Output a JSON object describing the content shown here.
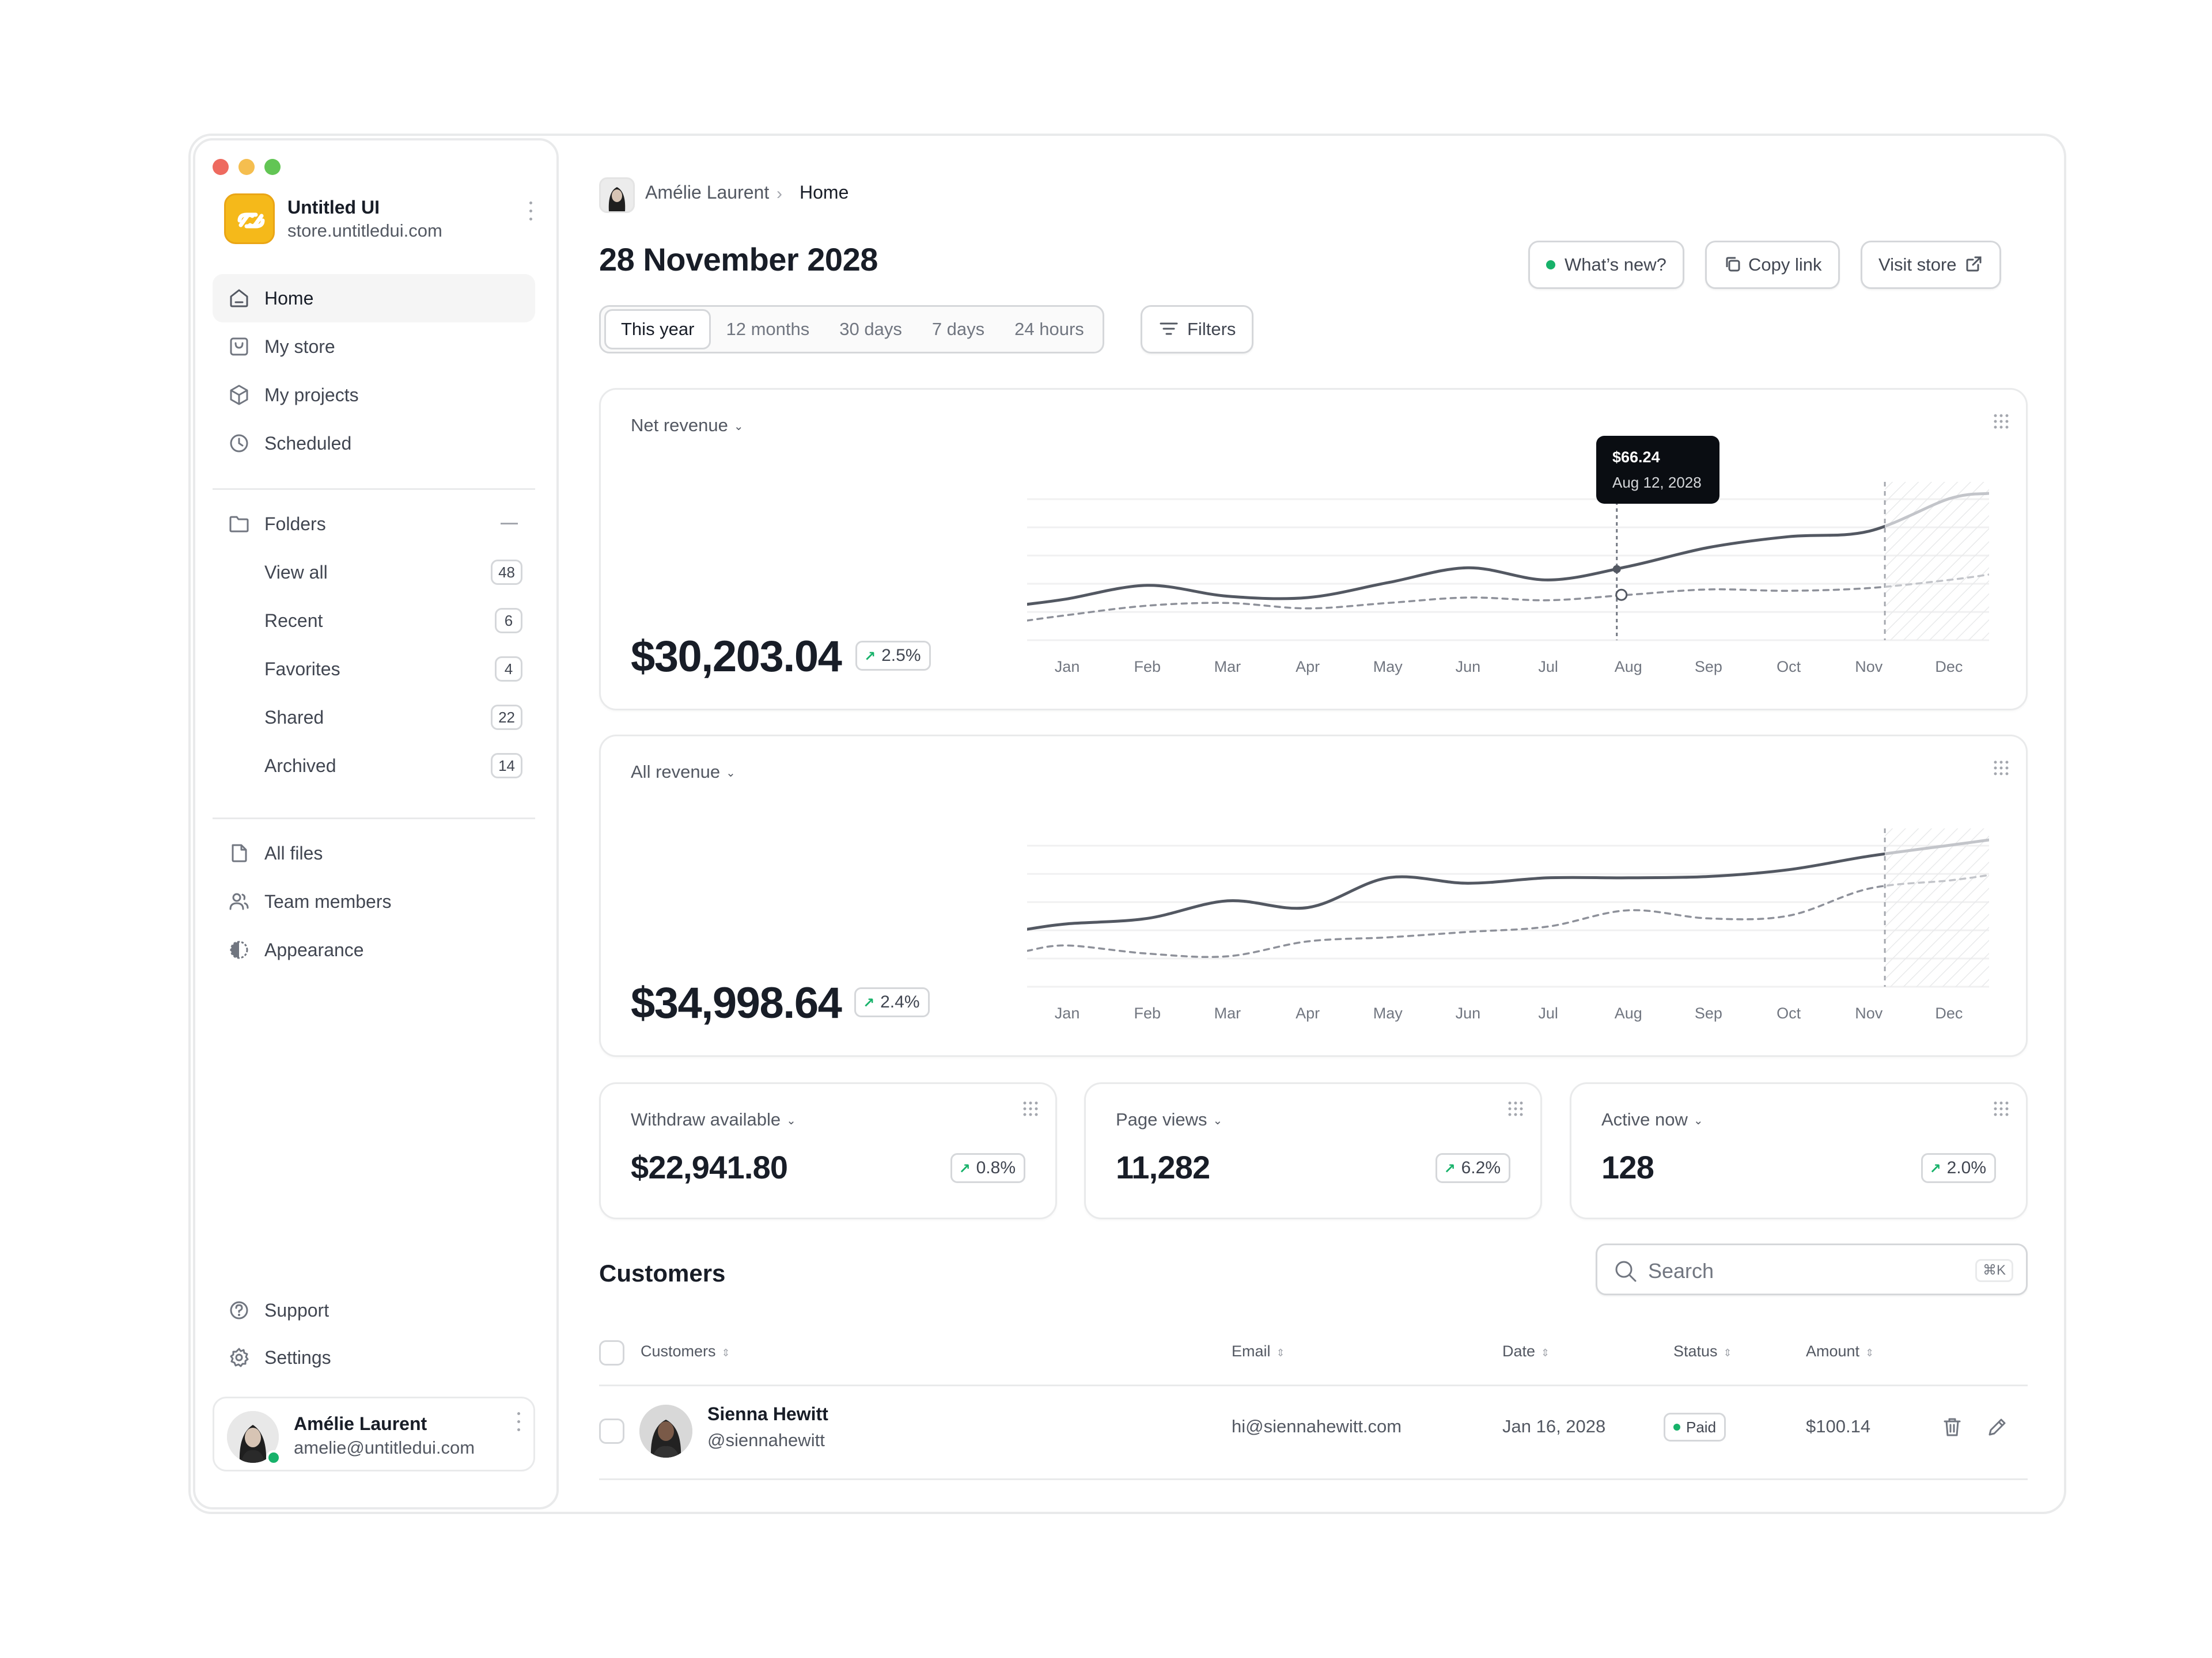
{
  "sidebar": {
    "brand": {
      "name": "Untitled UI",
      "url": "store.untitledui.com"
    },
    "nav": [
      {
        "label": "Home",
        "icon": "home-icon",
        "active": true
      },
      {
        "label": "My store",
        "icon": "store-icon"
      },
      {
        "label": "My projects",
        "icon": "cube-icon"
      },
      {
        "label": "Scheduled",
        "icon": "clock-icon"
      }
    ],
    "folders": {
      "label": "Folders",
      "items": [
        {
          "label": "View all",
          "count": "48"
        },
        {
          "label": "Recent",
          "count": "6"
        },
        {
          "label": "Favorites",
          "count": "4"
        },
        {
          "label": "Shared",
          "count": "22"
        },
        {
          "label": "Archived",
          "count": "14"
        }
      ]
    },
    "secondary": [
      {
        "label": "All files",
        "icon": "file-icon"
      },
      {
        "label": "Team members",
        "icon": "users-icon"
      },
      {
        "label": "Appearance",
        "icon": "contrast-icon"
      }
    ],
    "footer_nav": [
      {
        "label": "Support",
        "icon": "help-icon"
      },
      {
        "label": "Settings",
        "icon": "gear-icon"
      }
    ],
    "user": {
      "name": "Amélie Laurent",
      "email": "amelie@untitledui.com"
    }
  },
  "breadcrumb": {
    "user": "Amélie Laurent",
    "current": "Home"
  },
  "header": {
    "title": "28 November 2028",
    "whats_new": "What’s new?",
    "copy_link": "Copy link",
    "visit_store": "Visit store"
  },
  "range_tabs": [
    "This year",
    "12 months",
    "30 days",
    "7 days",
    "24 hours"
  ],
  "filters_label": "Filters",
  "net_revenue": {
    "label": "Net revenue",
    "value": "$30,203.04",
    "delta": "2.5%",
    "tooltip": {
      "value": "$66.24",
      "date": "Aug 12, 2028"
    }
  },
  "all_revenue": {
    "label": "All revenue",
    "value": "$34,998.64",
    "delta": "2.4%"
  },
  "stats": [
    {
      "label": "Withdraw available",
      "value": "$22,941.80",
      "delta": "0.8%"
    },
    {
      "label": "Page views",
      "value": "11,282",
      "delta": "6.2%"
    },
    {
      "label": "Active now",
      "value": "128",
      "delta": "2.0%"
    }
  ],
  "customers": {
    "title": "Customers",
    "search_placeholder": "Search",
    "shortcut": "⌘K",
    "columns": [
      "Customers",
      "Email",
      "Date",
      "Status",
      "Amount"
    ],
    "rows": [
      {
        "name": "Sienna Hewitt",
        "handle": "@siennahewitt",
        "email": "hi@siennahewitt.com",
        "date": "Jan 16, 2028",
        "status": "Paid",
        "amount": "$100.14"
      }
    ]
  },
  "colors": {
    "accent": "#17b26a",
    "line": "#535862",
    "dashed": "#a4a7ae",
    "border": "#e9eaeb"
  },
  "chart_data": [
    {
      "type": "line",
      "title": "Net revenue",
      "categories": [
        "Jan",
        "Feb",
        "Mar",
        "Apr",
        "May",
        "Jun",
        "Jul",
        "Aug",
        "Sep",
        "Oct",
        "Nov",
        "Dec"
      ],
      "series": [
        {
          "values": [
            22,
            32,
            24,
            23,
            34,
            45,
            36,
            46,
            60,
            68,
            72,
            96
          ]
        },
        {
          "values": [
            10,
            17,
            19,
            15,
            19,
            23,
            21,
            25,
            29,
            28,
            30,
            36
          ]
        }
      ],
      "annotations": [
        {
          "text": "$66.24",
          "date": "Aug 12, 2028"
        }
      ]
    },
    {
      "type": "line",
      "title": "All revenue",
      "categories": [
        "Jan",
        "Feb",
        "Mar",
        "Apr",
        "May",
        "Jun",
        "Jul",
        "Aug",
        "Sep",
        "Oct",
        "Nov",
        "Dec"
      ],
      "series": [
        {
          "values": [
            38,
            42,
            55,
            50,
            72,
            68,
            72,
            72,
            73,
            78,
            88,
            96
          ]
        },
        {
          "values": [
            22,
            16,
            14,
            25,
            28,
            32,
            36,
            48,
            42,
            44,
            64,
            70
          ]
        }
      ]
    }
  ]
}
